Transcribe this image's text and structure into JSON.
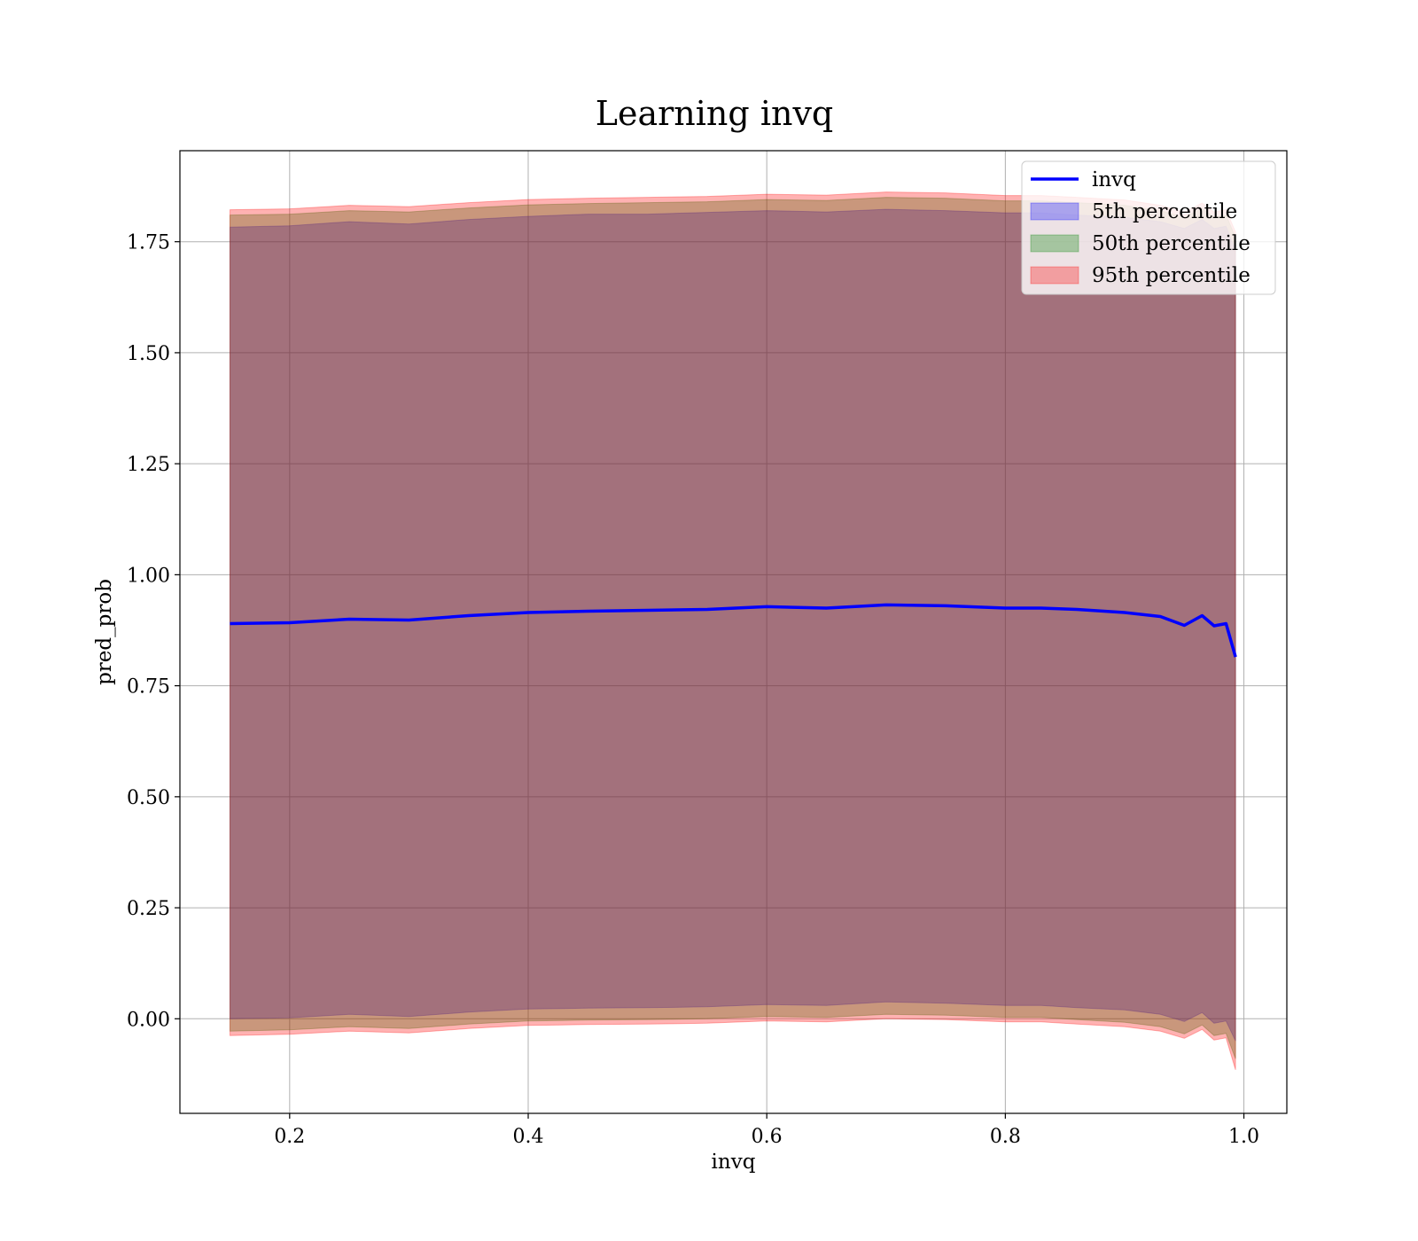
{
  "chart_data": {
    "type": "line",
    "title": "Learning invq",
    "xlabel": "invq",
    "ylabel": "pred_prob",
    "xlim": [
      0.108,
      1.036
    ],
    "ylim": [
      -0.213,
      1.955
    ],
    "grid": true,
    "legend_placement": "top-right",
    "x_ticks": [
      0.2,
      0.4,
      0.6,
      0.8,
      1.0
    ],
    "x_tick_labels": [
      "0.2",
      "0.4",
      "0.6",
      "0.8",
      "1.0"
    ],
    "y_ticks": [
      0.0,
      0.25,
      0.5,
      0.75,
      1.0,
      1.25,
      1.5,
      1.75
    ],
    "y_tick_labels": [
      "0.00",
      "0.25",
      "0.50",
      "0.75",
      "1.00",
      "1.25",
      "1.50",
      "1.75"
    ],
    "x": [
      0.15,
      0.2,
      0.25,
      0.3,
      0.35,
      0.4,
      0.45,
      0.5,
      0.55,
      0.6,
      0.65,
      0.7,
      0.75,
      0.8,
      0.83,
      0.86,
      0.9,
      0.93,
      0.95,
      0.965,
      0.975,
      0.985,
      0.993
    ],
    "series": [
      {
        "name": "invq",
        "values": [
          0.89,
          0.892,
          0.9,
          0.898,
          0.908,
          0.915,
          0.918,
          0.92,
          0.922,
          0.928,
          0.925,
          0.932,
          0.93,
          0.925,
          0.925,
          0.922,
          0.915,
          0.906,
          0.886,
          0.908,
          0.885,
          0.89,
          0.815
        ]
      }
    ],
    "bands": [
      {
        "name": "5th percentile",
        "color": "#0000ff",
        "lower": [
          0.0,
          0.002,
          0.01,
          0.005,
          0.015,
          0.022,
          0.024,
          0.025,
          0.027,
          0.032,
          0.03,
          0.038,
          0.035,
          0.03,
          0.03,
          0.025,
          0.02,
          0.01,
          -0.006,
          0.014,
          -0.01,
          -0.005,
          -0.05
        ],
        "upper": [
          1.783,
          1.786,
          1.795,
          1.79,
          1.8,
          1.807,
          1.812,
          1.812,
          1.816,
          1.82,
          1.817,
          1.823,
          1.82,
          1.815,
          1.815,
          1.81,
          1.805,
          1.795,
          1.78,
          1.8,
          1.78,
          1.785,
          1.73
        ]
      },
      {
        "name": "50th percentile",
        "color": "#008000",
        "lower": [
          -0.028,
          -0.025,
          -0.018,
          -0.022,
          -0.012,
          -0.005,
          -0.003,
          -0.002,
          0.0,
          0.005,
          0.003,
          0.01,
          0.008,
          0.003,
          0.003,
          -0.002,
          -0.008,
          -0.018,
          -0.034,
          -0.014,
          -0.038,
          -0.033,
          -0.09
        ],
        "upper": [
          1.81,
          1.812,
          1.82,
          1.817,
          1.826,
          1.833,
          1.836,
          1.838,
          1.84,
          1.845,
          1.843,
          1.85,
          1.848,
          1.842,
          1.842,
          1.838,
          1.832,
          1.82,
          1.805,
          1.825,
          1.805,
          1.81,
          1.76
        ]
      },
      {
        "name": "95th percentile",
        "color": "#ff0000",
        "lower": [
          -0.038,
          -0.035,
          -0.028,
          -0.032,
          -0.022,
          -0.015,
          -0.013,
          -0.012,
          -0.01,
          -0.005,
          -0.007,
          0.0,
          -0.002,
          -0.007,
          -0.007,
          -0.012,
          -0.018,
          -0.028,
          -0.044,
          -0.024,
          -0.048,
          -0.043,
          -0.115
        ],
        "upper": [
          1.822,
          1.824,
          1.832,
          1.829,
          1.838,
          1.845,
          1.848,
          1.85,
          1.852,
          1.857,
          1.855,
          1.862,
          1.86,
          1.854,
          1.854,
          1.85,
          1.844,
          1.832,
          1.817,
          1.837,
          1.817,
          1.822,
          1.772
        ]
      }
    ],
    "legend": [
      "invq",
      "5th percentile",
      "50th percentile",
      "95th percentile"
    ]
  }
}
